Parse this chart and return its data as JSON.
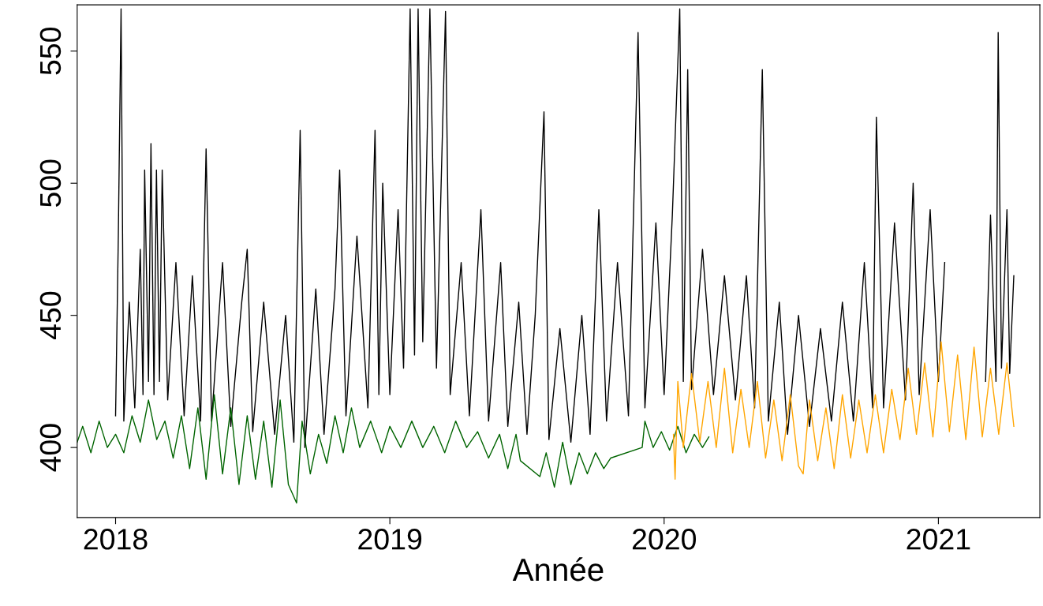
{
  "chart_data": {
    "type": "line",
    "xlabel": "Année",
    "xlim": [
      2017.86,
      2021.37
    ],
    "ylim": [
      373.5,
      567.5
    ],
    "xticks": [
      2018,
      2019,
      2020,
      2021
    ],
    "yticks": [
      400,
      450,
      500,
      550
    ],
    "grid": false,
    "marker": "none",
    "line_style": "solid",
    "series": [
      {
        "color": "#000000",
        "x": [
          2018.0,
          2018.01,
          2018.02,
          2018.03,
          2018.05,
          2018.07,
          2018.09,
          2018.1,
          2018.106,
          2018.12,
          2018.129,
          2018.14,
          2018.149,
          2018.16,
          2018.17,
          2018.19,
          2018.22,
          2018.25,
          2018.28,
          2018.31,
          2018.33,
          2018.35,
          2018.39,
          2018.42,
          2018.46,
          2018.48,
          2018.5,
          2018.54,
          2018.58,
          2018.62,
          2018.65,
          2018.673,
          2018.69,
          2018.73,
          2018.76,
          2018.8,
          2018.817,
          2018.84,
          2018.88,
          2018.92,
          2018.946,
          2018.96,
          2018.974,
          2019.0,
          2019.03,
          2019.05,
          2019.074,
          2019.09,
          2019.103,
          2019.12,
          2019.146,
          2019.17,
          2019.203,
          2019.22,
          2019.26,
          2019.29,
          2019.332,
          2019.36,
          2019.404,
          2019.43,
          2019.47,
          2019.5,
          2019.53,
          2019.562,
          2019.58,
          2019.62,
          2019.66,
          2019.7,
          2019.73,
          2019.762,
          2019.79,
          2019.83,
          2019.87,
          2019.905,
          2019.93,
          2019.97,
          2020.0,
          2020.03,
          2020.057,
          2020.07,
          2020.086,
          2020.1,
          2020.14,
          2020.18,
          2020.22,
          2020.26,
          2020.3,
          2020.33,
          2020.358,
          2020.38,
          2020.42,
          2020.45,
          2020.49,
          2020.53,
          2020.57,
          2020.61,
          2020.65,
          2020.69,
          2020.73,
          2020.76,
          2020.774,
          2020.8,
          2020.84,
          2020.88,
          2020.908,
          2020.93,
          2020.97,
          2021.0,
          2021.023,
          2021.1,
          2021.172,
          2021.19,
          2021.21,
          2021.218,
          2021.23,
          2021.25,
          2021.26,
          2021.275
        ],
        "values": [
          412,
          480,
          566,
          410,
          455,
          415,
          475,
          420,
          505,
          425,
          515,
          420,
          505,
          425,
          505,
          418,
          470,
          412,
          465,
          410,
          513,
          410,
          470,
          408,
          455,
          475,
          406,
          455,
          405,
          450,
          402,
          520,
          400,
          460,
          405,
          460,
          505,
          412,
          480,
          415,
          520,
          420,
          500,
          420,
          490,
          430,
          566,
          435,
          566,
          440,
          566,
          430,
          565,
          420,
          470,
          412,
          490,
          410,
          470,
          408,
          455,
          405,
          450,
          527,
          403,
          445,
          402,
          450,
          405,
          490,
          410,
          470,
          412,
          557,
          415,
          485,
          420,
          488,
          566,
          425,
          543,
          422,
          475,
          420,
          465,
          418,
          465,
          415,
          543,
          410,
          455,
          405,
          450,
          408,
          445,
          410,
          455,
          410,
          470,
          415,
          525,
          415,
          485,
          418,
          500,
          420,
          490,
          425,
          470,
          null,
          425,
          488,
          425,
          557,
          430,
          490,
          428,
          465
        ]
      },
      {
        "color": "#006400",
        "x": [
          2017.86,
          2017.88,
          2017.91,
          2017.94,
          2017.97,
          2018.0,
          2018.03,
          2018.06,
          2018.09,
          2018.12,
          2018.15,
          2018.18,
          2018.21,
          2018.24,
          2018.27,
          2018.3,
          2018.33,
          2018.36,
          2018.39,
          2018.42,
          2018.45,
          2018.48,
          2018.51,
          2018.54,
          2018.57,
          2018.6,
          2018.63,
          2018.66,
          2018.68,
          2018.71,
          2018.74,
          2018.77,
          2018.8,
          2018.83,
          2018.86,
          2018.89,
          2018.93,
          2018.97,
          2019.0,
          2019.04,
          2019.08,
          2019.12,
          2019.16,
          2019.2,
          2019.24,
          2019.28,
          2019.32,
          2019.36,
          2019.4,
          2019.43,
          2019.46,
          2019.476,
          2019.547,
          2019.57,
          2019.6,
          2019.63,
          2019.66,
          2019.69,
          2019.72,
          2019.75,
          2019.78,
          2019.805,
          2019.92,
          2019.93,
          2019.96,
          2019.99,
          2020.02,
          2020.05,
          2020.08,
          2020.11,
          2020.14,
          2020.163
        ],
        "values": [
          402,
          408,
          398,
          410,
          400,
          405,
          398,
          412,
          402,
          418,
          403,
          410,
          396,
          412,
          392,
          415,
          388,
          420,
          390,
          415,
          386,
          412,
          388,
          410,
          385,
          418,
          386,
          379,
          410,
          390,
          405,
          394,
          412,
          398,
          415,
          400,
          410,
          398,
          408,
          400,
          410,
          400,
          408,
          398,
          410,
          400,
          406,
          396,
          405,
          392,
          405,
          395,
          389,
          398,
          385,
          402,
          386,
          398,
          390,
          398,
          392,
          396,
          400,
          410,
          400,
          406,
          399,
          408,
          398,
          405,
          400,
          404
        ]
      },
      {
        "color": "#ffa500",
        "x": [
          2020.034,
          2020.04,
          2020.05,
          2020.07,
          2020.1,
          2020.13,
          2020.16,
          2020.19,
          2020.22,
          2020.25,
          2020.28,
          2020.31,
          2020.34,
          2020.37,
          2020.4,
          2020.43,
          2020.46,
          2020.49,
          2020.507,
          2020.53,
          2020.56,
          2020.59,
          2020.62,
          2020.65,
          2020.68,
          2020.71,
          2020.74,
          2020.77,
          2020.8,
          2020.83,
          2020.86,
          2020.89,
          2020.92,
          2020.95,
          2020.98,
          2021.01,
          2021.04,
          2021.07,
          2021.1,
          2021.13,
          2021.16,
          2021.19,
          2021.22,
          2021.25,
          2021.275
        ],
        "values": [
          405,
          388,
          425,
          400,
          428,
          402,
          425,
          400,
          430,
          398,
          422,
          400,
          425,
          396,
          418,
          395,
          420,
          393,
          390,
          418,
          395,
          415,
          392,
          420,
          396,
          418,
          398,
          420,
          398,
          422,
          403,
          430,
          405,
          432,
          404,
          440,
          406,
          435,
          403,
          438,
          404,
          430,
          405,
          432,
          408
        ]
      }
    ]
  }
}
